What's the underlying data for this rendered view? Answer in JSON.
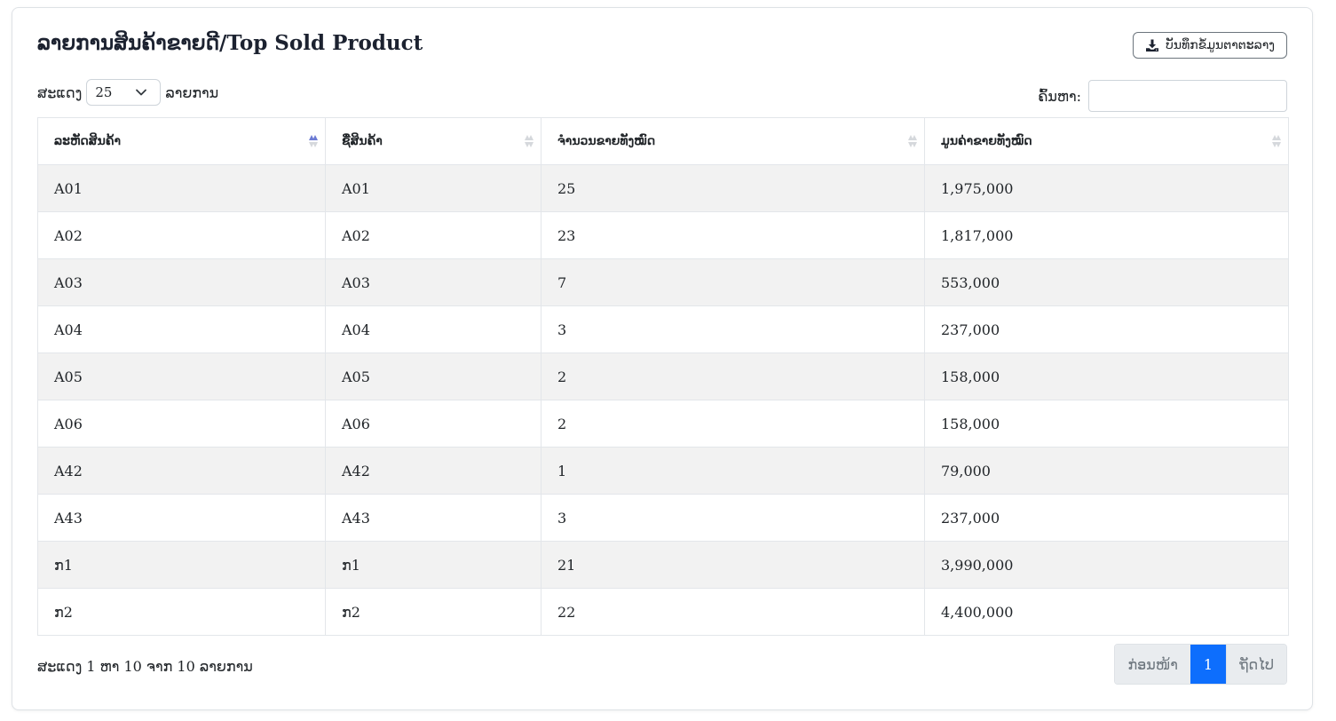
{
  "header": {
    "title": "ລາຍການສິນຄ້າຂາຍດີ/Top Sold Product",
    "export_label": "ບັນທຶກຂໍ້ມູນຕາຕະລາງ"
  },
  "length_menu": {
    "prefix": "ສະແດງ",
    "value": "25",
    "suffix": "ລາຍການ"
  },
  "search": {
    "label": "ຄົ້ນຫາ:",
    "value": ""
  },
  "table": {
    "columns": [
      "ລະຫັດສິນຄ້າ",
      "ຊື່ສິນຄ້າ",
      "ຈຳນວນຂາຍທັງໝົດ",
      "ມູນຄ່າຂາຍທັງໝົດ"
    ],
    "rows": [
      [
        "A01",
        "A01",
        "25",
        "1,975,000"
      ],
      [
        "A02",
        "A02",
        "23",
        "1,817,000"
      ],
      [
        "A03",
        "A03",
        "7",
        "553,000"
      ],
      [
        "A04",
        "A04",
        "3",
        "237,000"
      ],
      [
        "A05",
        "A05",
        "2",
        "158,000"
      ],
      [
        "A06",
        "A06",
        "2",
        "158,000"
      ],
      [
        "A42",
        "A42",
        "1",
        "79,000"
      ],
      [
        "A43",
        "A43",
        "3",
        "237,000"
      ],
      [
        "ກ1",
        "ກ1",
        "21",
        "3,990,000"
      ],
      [
        "ກ2",
        "ກ2",
        "22",
        "4,400,000"
      ]
    ]
  },
  "footer": {
    "info": "ສະແດງ 1 ຫາ 10 ຈາກ 10 ລາຍການ",
    "prev_label": "ກ່ອນໜ້າ",
    "current_page": "1",
    "next_label": "ຖັດໄປ"
  },
  "colors": {
    "accent": "#0d6efd",
    "sort_active": "#6c7bd4",
    "sort_inactive": "#d5d8dc",
    "stripe": "#f2f2f2"
  }
}
